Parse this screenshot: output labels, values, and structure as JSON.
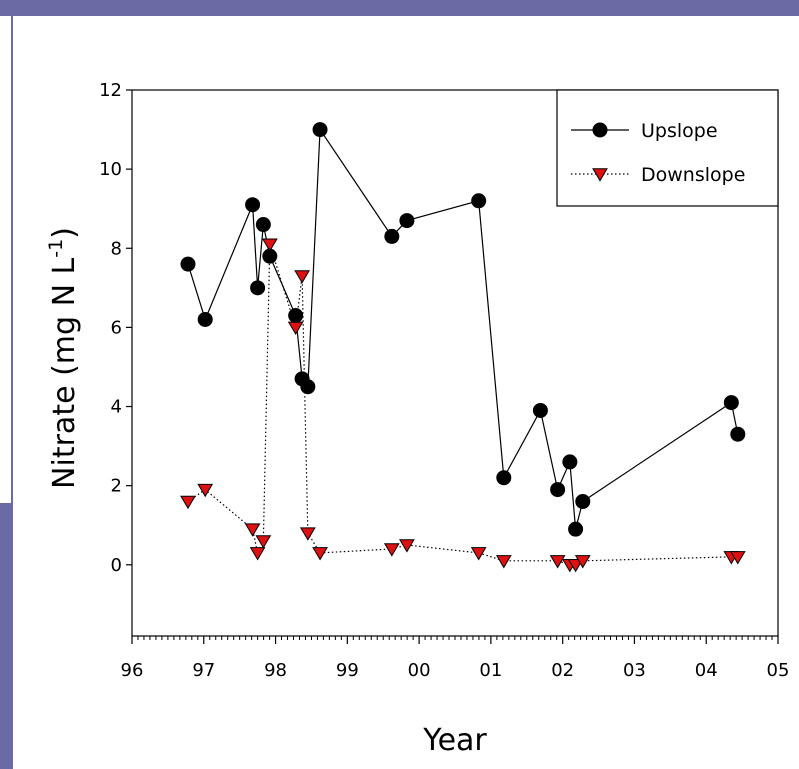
{
  "colors": {
    "frame": "#6b6aa5",
    "upslope_marker": "#000000",
    "downslope_marker": "#dd1111"
  },
  "chart_data": {
    "type": "line",
    "xlabel": "Year",
    "ylabel": "Nitrate (mg N L",
    "ylabel_sup": "-1",
    "ylabel_close": ")",
    "xlim": [
      1996,
      2005
    ],
    "ylim": [
      -1.8,
      12
    ],
    "x_ticks": [
      1996,
      1997,
      1998,
      1999,
      2000,
      2001,
      2002,
      2003,
      2004,
      2005
    ],
    "x_tick_labels": [
      "96",
      "97",
      "98",
      "99",
      "00",
      "01",
      "02",
      "03",
      "04",
      "05"
    ],
    "y_ticks": [
      0,
      2,
      4,
      6,
      8,
      10,
      12
    ],
    "y_tick_labels": [
      "0",
      "2",
      "4",
      "6",
      "8",
      "10",
      "12"
    ],
    "legend_position": "top-right",
    "series": [
      {
        "name": "Upslope",
        "marker": "circle",
        "line": "solid",
        "points": [
          [
            1996.78,
            7.6
          ],
          [
            1997.02,
            6.2
          ],
          [
            1997.68,
            9.1
          ],
          [
            1997.75,
            7.0
          ],
          [
            1997.83,
            8.6
          ],
          [
            1997.92,
            7.8
          ],
          [
            1998.28,
            6.3
          ],
          [
            1998.37,
            4.7
          ],
          [
            1998.45,
            4.5
          ],
          [
            1998.62,
            11.0
          ],
          [
            1999.62,
            8.3
          ],
          [
            1999.83,
            8.7
          ],
          [
            2000.83,
            9.2
          ],
          [
            2001.18,
            2.2
          ],
          [
            2001.69,
            3.9
          ],
          [
            2001.93,
            1.9
          ],
          [
            2002.1,
            2.6
          ],
          [
            2002.18,
            0.9
          ],
          [
            2002.28,
            1.6
          ],
          [
            2004.35,
            4.1
          ],
          [
            2004.44,
            3.3
          ]
        ]
      },
      {
        "name": "Downslope",
        "marker": "triangle-down",
        "line": "dotted",
        "points": [
          [
            1996.78,
            1.6
          ],
          [
            1997.02,
            1.9
          ],
          [
            1997.68,
            0.9
          ],
          [
            1997.75,
            0.3
          ],
          [
            1997.83,
            0.6
          ],
          [
            1997.92,
            8.1
          ],
          [
            1998.28,
            6.0
          ],
          [
            1998.37,
            7.3
          ],
          [
            1998.45,
            0.8
          ],
          [
            1998.62,
            0.3
          ],
          [
            1999.62,
            0.4
          ],
          [
            1999.83,
            0.5
          ],
          [
            2000.83,
            0.3
          ],
          [
            2001.18,
            0.1
          ],
          [
            2001.93,
            0.1
          ],
          [
            2002.1,
            0.0
          ],
          [
            2002.18,
            0.0
          ],
          [
            2002.28,
            0.1
          ],
          [
            2004.35,
            0.2
          ],
          [
            2004.44,
            0.2
          ]
        ]
      }
    ]
  }
}
